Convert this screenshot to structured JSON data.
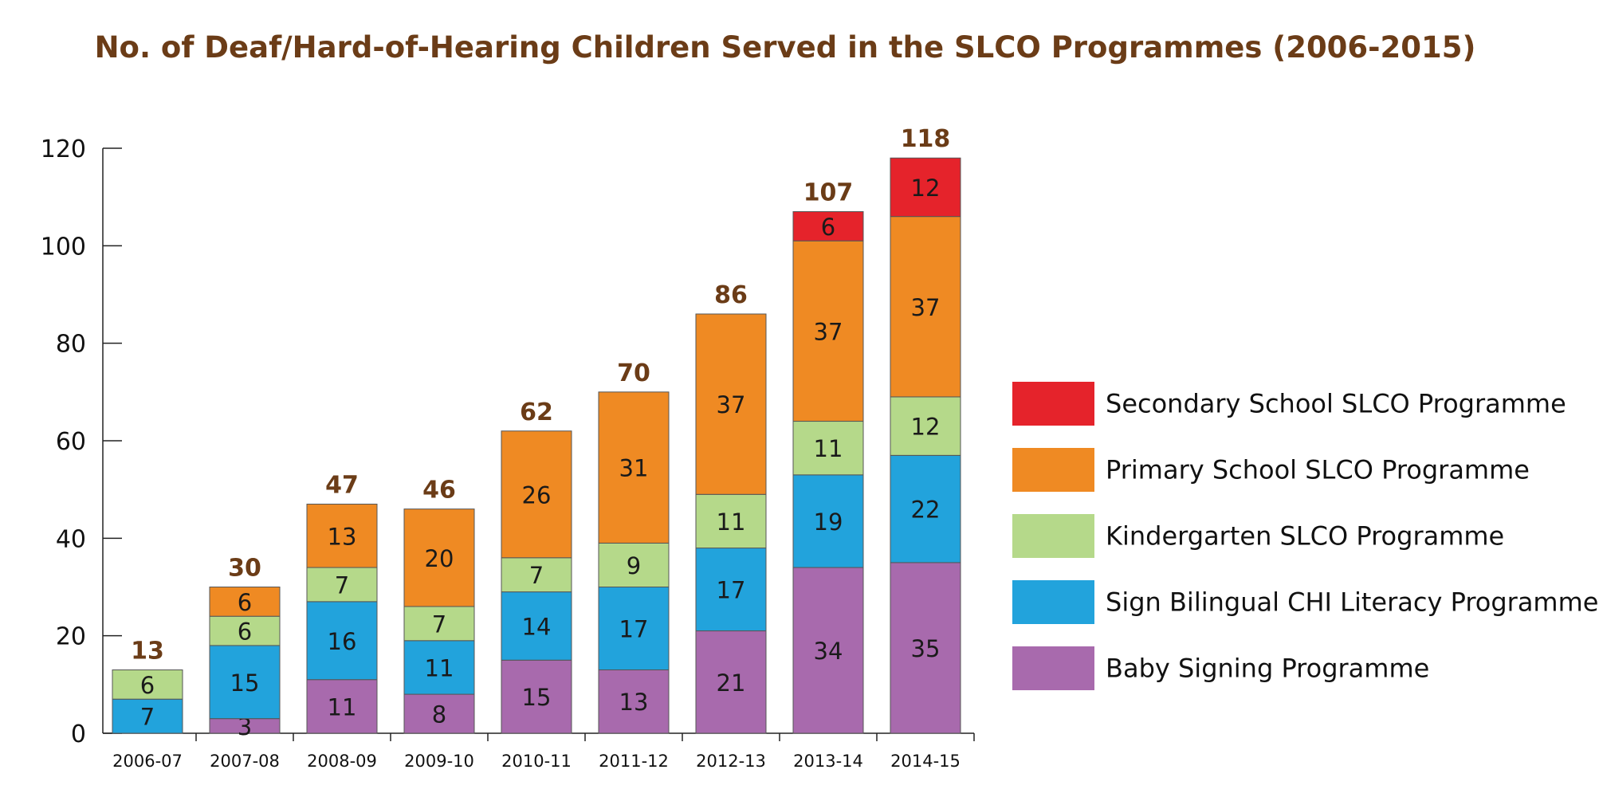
{
  "chart_data": {
    "type": "bar",
    "stacked": true,
    "title": "No. of Deaf/Hard-of-Hearing Children Served in the SLCO Programmes (2006-2015)",
    "categories": [
      "2006-07",
      "2007-08",
      "2008-09",
      "2009-10",
      "2010-11",
      "2011-12",
      "2012-13",
      "2013-14",
      "2014-15"
    ],
    "series": [
      {
        "name": "Baby Signing Programme",
        "color": "#a86aad",
        "values": [
          0,
          3,
          11,
          8,
          15,
          13,
          21,
          34,
          35
        ]
      },
      {
        "name": "Sign Bilingual CHI Literacy Programme",
        "color": "#22a3dc",
        "values": [
          7,
          15,
          16,
          11,
          14,
          17,
          17,
          19,
          22
        ]
      },
      {
        "name": "Kindergarten SLCO Programme",
        "color": "#b5d98a",
        "values": [
          6,
          6,
          7,
          7,
          7,
          9,
          11,
          11,
          12
        ]
      },
      {
        "name": "Primary School SLCO Programme",
        "color": "#ef8a23",
        "values": [
          0,
          6,
          13,
          20,
          26,
          31,
          37,
          37,
          37
        ]
      },
      {
        "name": "Secondary School SLCO Programme",
        "color": "#e5232b",
        "values": [
          0,
          0,
          0,
          0,
          0,
          0,
          0,
          6,
          12
        ]
      }
    ],
    "totals": [
      13,
      30,
      47,
      46,
      62,
      70,
      86,
      107,
      118
    ],
    "ylim": [
      0,
      120
    ],
    "yticks": [
      0,
      20,
      40,
      60,
      80,
      100,
      120
    ],
    "grid": false,
    "legend_position": "right",
    "legend_order": [
      "Secondary School SLCO Programme",
      "Primary School SLCO Programme",
      "Kindergarten SLCO Programme",
      "Sign Bilingual CHI Literacy Programme",
      "Baby Signing Programme"
    ],
    "colors": {
      "title": "#6b3c17",
      "total_labels": "#6b3c17",
      "axis": "#222222"
    }
  }
}
